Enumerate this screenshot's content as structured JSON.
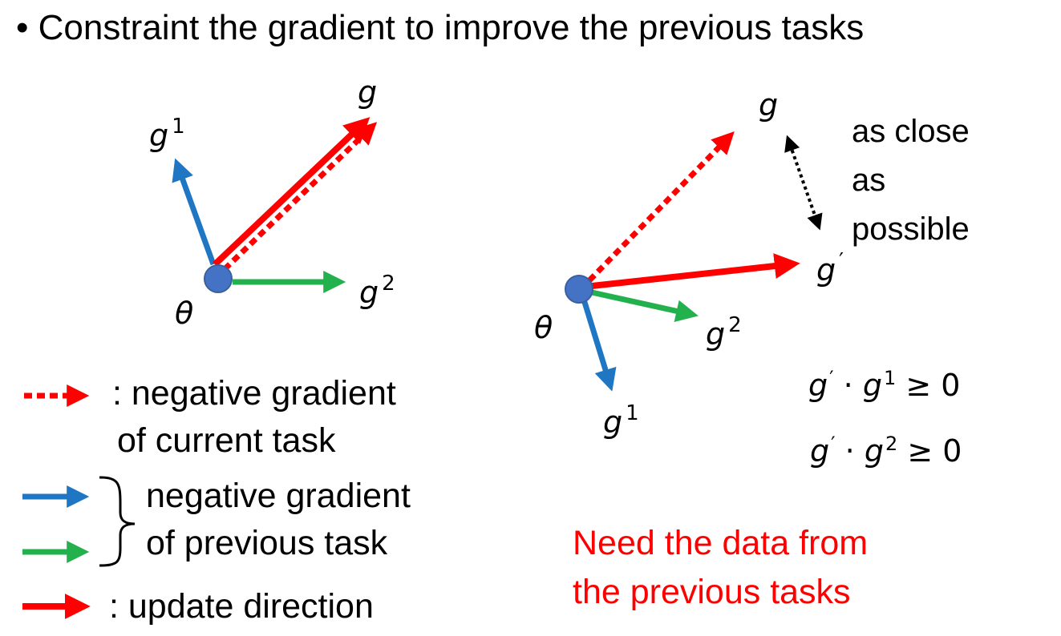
{
  "title": "• Constraint the gradient to improve the previous tasks",
  "colors": {
    "current_gradient": "#ff0000",
    "previous_gradient_1": "#1f77c4",
    "previous_gradient_2": "#22b14c",
    "update_direction": "#ff0000",
    "theta_point": "#4472c4",
    "note": "#ff0000"
  },
  "left_diagram": {
    "theta": "θ",
    "g": "g",
    "g1": {
      "base": "g",
      "sup": "1"
    },
    "g2": {
      "base": "g",
      "sup": "2"
    }
  },
  "right_diagram": {
    "theta": "θ",
    "g": "g",
    "g_prime": {
      "base": "g",
      "sup": "′"
    },
    "g1": {
      "base": "g",
      "sup": "1"
    },
    "g2": {
      "base": "g",
      "sup": "2"
    },
    "close_label": [
      "as close",
      "as",
      "possible"
    ],
    "constraints": [
      {
        "lhs": "g",
        "prime": "′",
        "dot": "·",
        "rhs": "g",
        "sup": "1",
        "rel": "≥ 0"
      },
      {
        "lhs": "g",
        "prime": "′",
        "dot": "·",
        "rhs": "g",
        "sup": "2",
        "rel": "≥ 0"
      }
    ]
  },
  "legend": {
    "current": [
      ": negative gradient",
      "of current task"
    ],
    "previous": [
      "negative gradient",
      "of previous task"
    ],
    "update": ": update direction"
  },
  "note": [
    "Need the data from",
    "the previous tasks"
  ]
}
